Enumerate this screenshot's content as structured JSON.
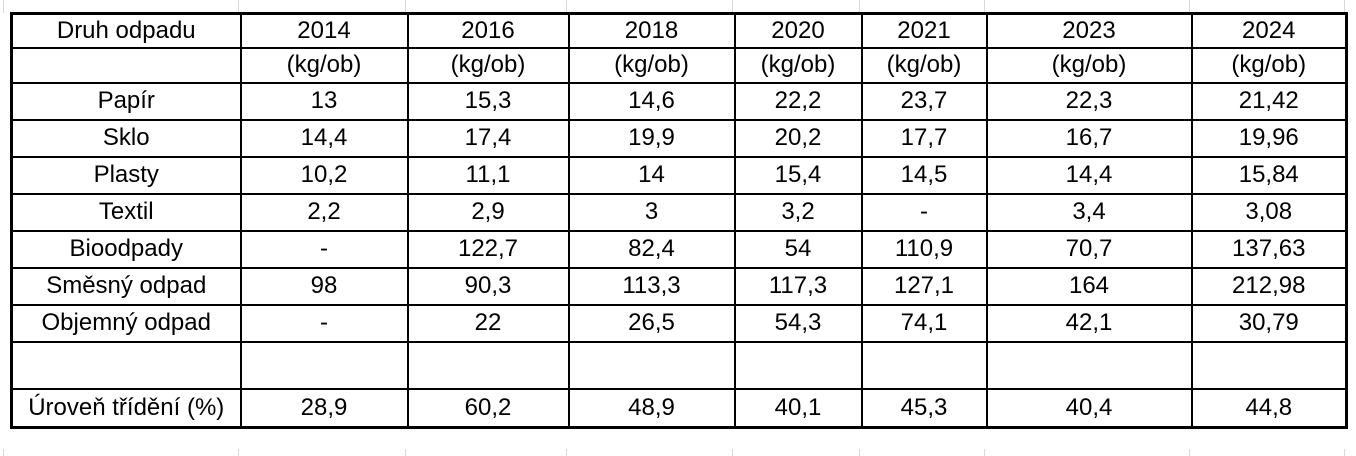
{
  "colors": {
    "table_border": "#000000",
    "gridline": "#d8d8d8",
    "text": "#000000",
    "background": "#ffffff"
  },
  "chart_data": {
    "type": "table",
    "header": {
      "label_column": "Druh odpadu",
      "years": [
        "2014",
        "2016",
        "2018",
        "2020",
        "2021",
        "2023",
        "2024"
      ],
      "unit": "(kg/ob)"
    },
    "rows": [
      {
        "label": "Papír",
        "values": [
          "13",
          "15,3",
          "14,6",
          "22,2",
          "23,7",
          "22,3",
          "21,42"
        ]
      },
      {
        "label": "Sklo",
        "values": [
          "14,4",
          "17,4",
          "19,9",
          "20,2",
          "17,7",
          "16,7",
          "19,96"
        ]
      },
      {
        "label": "Plasty",
        "values": [
          "10,2",
          "11,1",
          "14",
          "15,4",
          "14,5",
          "14,4",
          "15,84"
        ]
      },
      {
        "label": "Textil",
        "values": [
          "2,2",
          "2,9",
          "3",
          "3,2",
          "-",
          "3,4",
          "3,08"
        ]
      },
      {
        "label": "Bioodpady",
        "values": [
          "-",
          "122,7",
          "82,4",
          "54",
          "110,9",
          "70,7",
          "137,63"
        ]
      },
      {
        "label": "Směsný odpad",
        "values": [
          "98",
          "90,3",
          "113,3",
          "117,3",
          "127,1",
          "164",
          "212,98"
        ]
      },
      {
        "label": "Objemný odpad",
        "values": [
          "-",
          "22",
          "26,5",
          "54,3",
          "74,1",
          "42,1",
          "30,79"
        ]
      },
      {
        "label": "",
        "values": [
          "",
          "",
          "",
          "",
          "",
          "",
          ""
        ]
      },
      {
        "label": "Úroveň třídění (%)",
        "values": [
          "28,9",
          "60,2",
          "48,9",
          "40,1",
          "45,3",
          "40,4",
          "44,8"
        ]
      }
    ]
  }
}
